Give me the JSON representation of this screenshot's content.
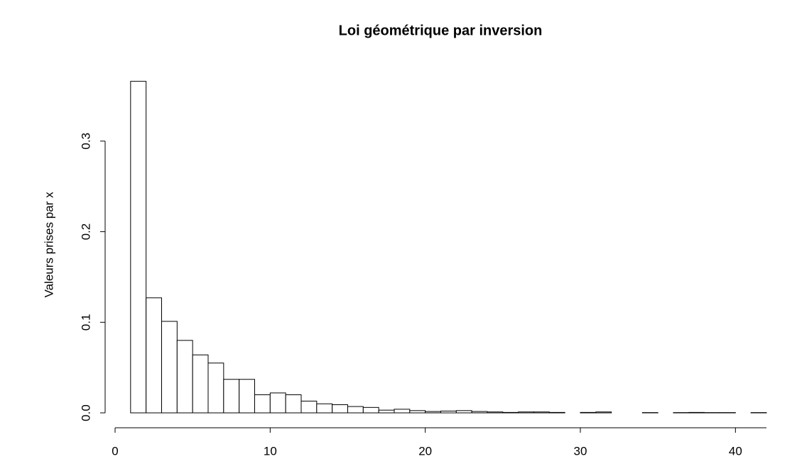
{
  "chart_data": {
    "type": "histogram",
    "title": "Loi géométrique par inversion",
    "y_label": "Valeurs prises par x",
    "bins": [
      1,
      2,
      3,
      4,
      5,
      6,
      7,
      8,
      9,
      10,
      11,
      12,
      13,
      14,
      15,
      16,
      17,
      18,
      19,
      20,
      21,
      22,
      23,
      24,
      25,
      26,
      27,
      28,
      29,
      30,
      31,
      32,
      33,
      34,
      35,
      36,
      37,
      38,
      39,
      40,
      41,
      42
    ],
    "values": [
      0.366,
      0.127,
      0.101,
      0.08,
      0.064,
      0.055,
      0.037,
      0.037,
      0.02,
      0.022,
      0.02,
      0.013,
      0.01,
      0.009,
      0.007,
      0.006,
      0.003,
      0.004,
      0.0025,
      0.0015,
      0.002,
      0.0025,
      0.0015,
      0.001,
      0.0005,
      0.001,
      0.001,
      0.0005,
      0,
      0.0005,
      0.001,
      0,
      0,
      0.0003,
      0,
      0.0003,
      0.0005,
      0.0003,
      0.0003,
      0,
      0.0003
    ],
    "color": "#ffffff",
    "xlim": [
      0,
      42
    ],
    "xticks": [
      0,
      10,
      20,
      30,
      40
    ],
    "ylim": [
      0,
      0.37
    ],
    "yticks": [
      {
        "value": 0,
        "label": "0.0"
      },
      0.1,
      0.2,
      0.3
    ]
  }
}
